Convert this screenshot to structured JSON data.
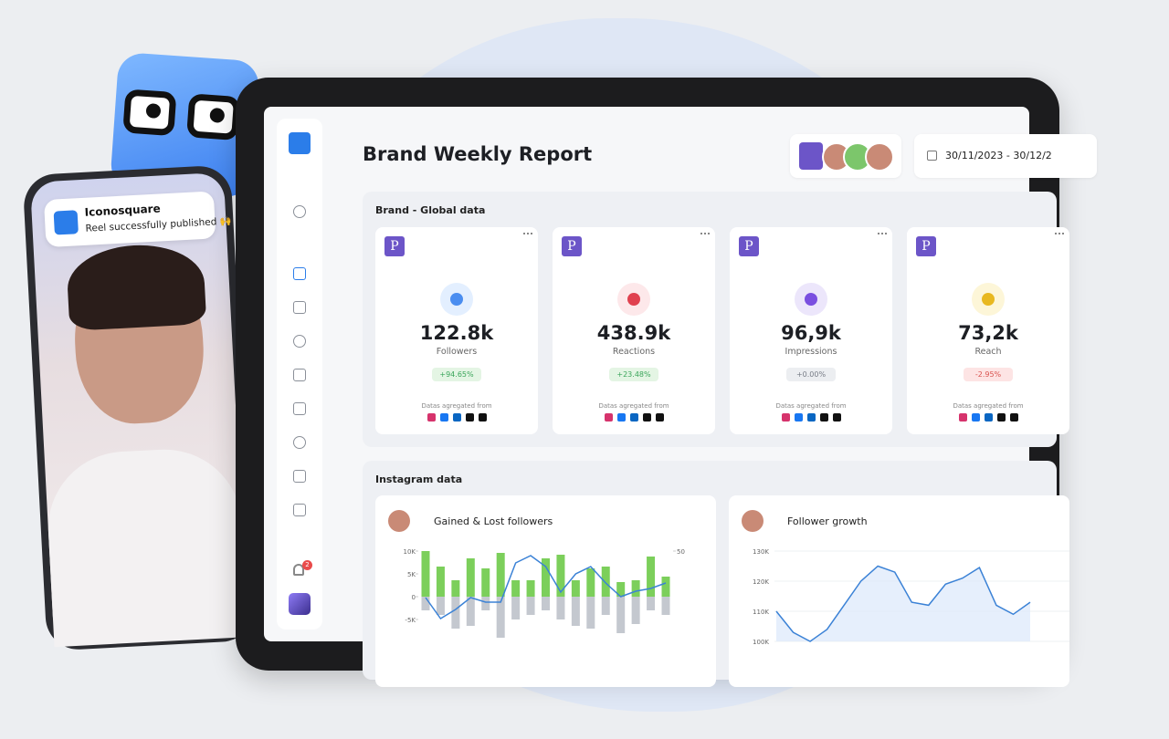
{
  "phone": {
    "app": "Iconosquare",
    "message": "Reel successfully published 🙌"
  },
  "sidebar": {
    "notification_count": "2"
  },
  "header": {
    "title": "Brand Weekly Report",
    "date_range": "30/11/2023 - 30/12/2"
  },
  "brand_section": {
    "title": "Brand - Global data",
    "brand_initial": "P",
    "source_label": "Datas agregated from",
    "cards": [
      {
        "value": "122.8k",
        "label": "Followers",
        "change": "+94.65%",
        "icon_color": "#4a8df0",
        "icon_bg": "#e3efff",
        "change_color": "#3aa55a",
        "change_bg": "#e4f5e4"
      },
      {
        "value": "438.9k",
        "label": "Reactions",
        "change": "+23.48%",
        "icon_color": "#e0414f",
        "icon_bg": "#fde8ea",
        "change_color": "#3aa55a",
        "change_bg": "#e4f5e4"
      },
      {
        "value": "96,9k",
        "label": "Impressions",
        "change": "+0.00%",
        "icon_color": "#7a4fe0",
        "icon_bg": "#ece6fb",
        "change_color": "#777c86",
        "change_bg": "#eceef1"
      },
      {
        "value": "73,2k",
        "label": "Reach",
        "change": "-2.95%",
        "icon_color": "#e8b820",
        "icon_bg": "#fdf6d8",
        "change_color": "#d9534f",
        "change_bg": "#fde4e4"
      }
    ]
  },
  "instagram_section": {
    "title": "Instagram data",
    "charts": [
      {
        "type": "bar",
        "title": "Gained & Lost followers",
        "ylim": [
          -10000,
          10000
        ],
        "yticks": [
          {
            "value": 10000,
            "label": "10K"
          },
          {
            "value": 5000,
            "label": "5K"
          },
          0,
          {
            "value": -5000,
            "label": "-5K"
          }
        ],
        "y2lim": [
          -50,
          50
        ],
        "y2ticks": [
          50
        ],
        "series": [
          {
            "color": "#7ccf5b",
            "values": [
              10000,
              6600,
              3600,
              8400,
              6200,
              9600,
              3600,
              3600,
              8400,
              9200,
              3600,
              6200,
              6600,
              3200,
              3600,
              8800,
              4400
            ]
          },
          {
            "color": "#c4c8cf",
            "values": [
              -3000,
              -4000,
              -7000,
              -6400,
              -3000,
              -9000,
              -5000,
              -4000,
              -3000,
              -5000,
              -6400,
              -7000,
              -4000,
              -8000,
              -6000,
              -3000,
              -4000
            ]
          },
          {
            "type": "line",
            "axis": "y2",
            "color": "#3b82d6",
            "values": [
              -1,
              -24,
              -14,
              -1,
              -6,
              -6,
              37,
              45,
              33,
              5,
              25,
              33,
              15,
              0,
              6,
              9,
              15
            ]
          }
        ]
      },
      {
        "type": "line",
        "title": "Follower growth",
        "ylim": [
          100000,
          130000
        ],
        "yticks": [
          {
            "value": 130000,
            "label": "130K"
          },
          {
            "value": 120000,
            "label": "120K"
          },
          {
            "value": 110000,
            "label": "110K"
          },
          {
            "value": 100000,
            "label": "100K"
          }
        ],
        "grid": true,
        "color": "#3b82d6",
        "values": [
          110000,
          103000,
          100000,
          104000,
          112000,
          120000,
          125000,
          123000,
          113000,
          112000,
          119000,
          121000,
          124500,
          112000,
          109000,
          113000
        ]
      }
    ]
  }
}
